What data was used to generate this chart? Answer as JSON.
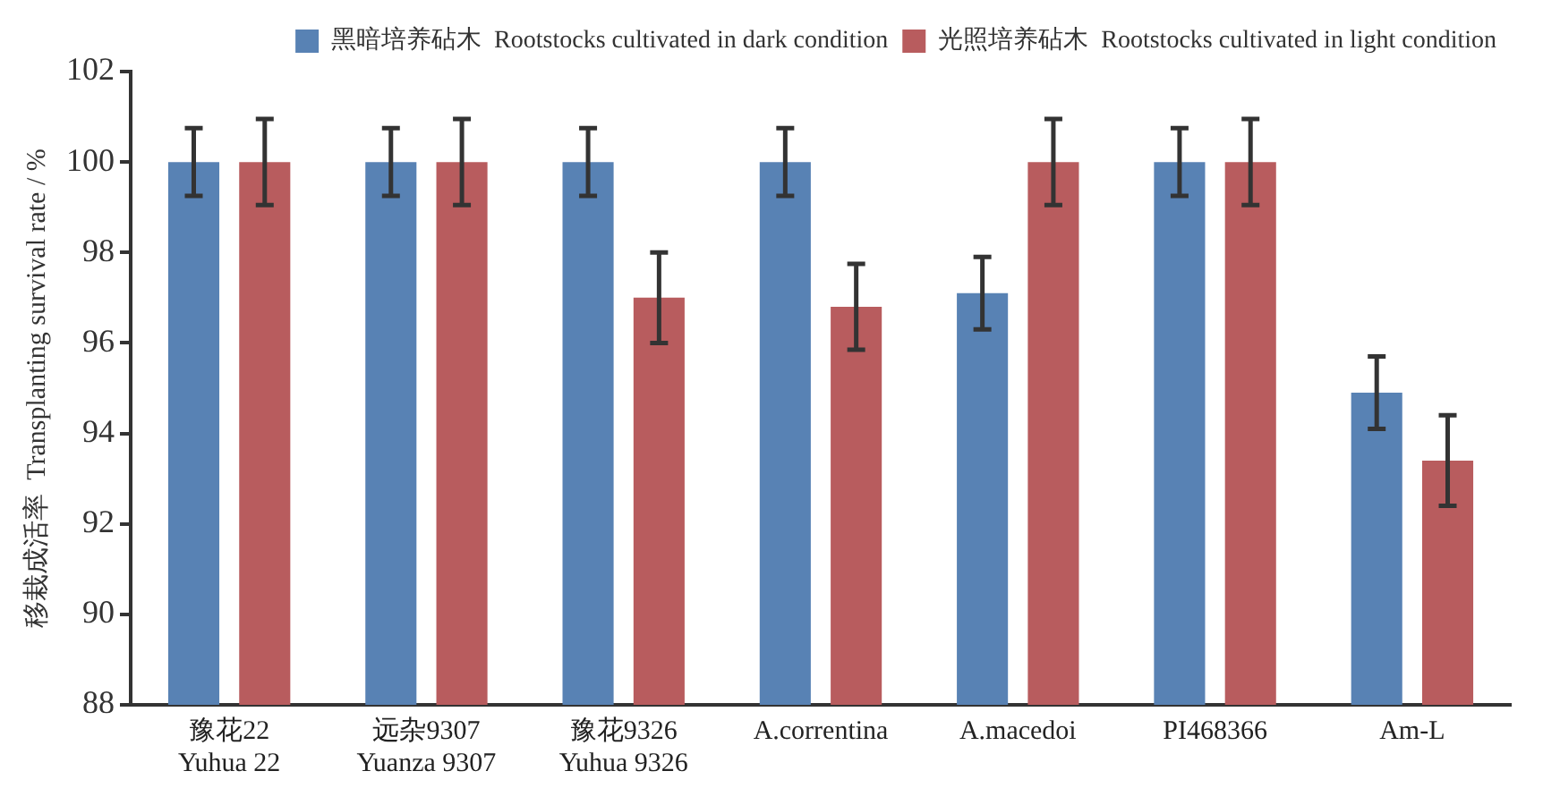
{
  "chart_data": {
    "type": "bar",
    "ylabel": "移栽成活率  Transplanting survival rate / %",
    "categories": [
      "豫花22\nYuhua 22",
      "远杂9307\nYuanza 9307",
      "豫花9326\nYuhua 9326",
      "A.correntina",
      "A.macedoi",
      "PI468366",
      "Am-L"
    ],
    "series": [
      {
        "name": "黑暗培养砧木  Rootstocks cultivated in dark condition",
        "color": "#5882b4",
        "values": [
          100,
          100,
          100,
          100,
          97.1,
          100,
          94.9
        ],
        "errors": [
          0.75,
          0.75,
          0.75,
          0.75,
          0.8,
          0.75,
          0.8
        ]
      },
      {
        "name": "光照培养砧木  Rootstocks cultivated in light condition",
        "color": "#b85c5e",
        "values": [
          100,
          100,
          97.0,
          96.8,
          100,
          100,
          93.4
        ],
        "errors": [
          0.95,
          0.95,
          1.0,
          0.95,
          0.95,
          0.95,
          1.0
        ]
      }
    ],
    "ylim": [
      88,
      102
    ],
    "yticks": [
      88,
      90,
      92,
      94,
      96,
      98,
      100,
      102
    ],
    "grid": false,
    "legend": "top right"
  }
}
